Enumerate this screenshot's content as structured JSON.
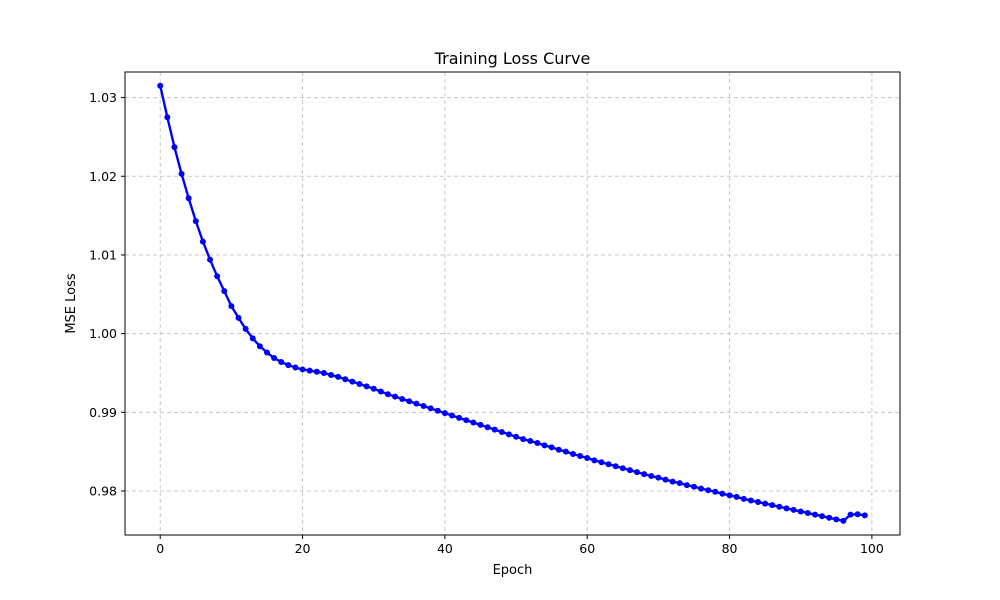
{
  "chart_data": {
    "type": "line",
    "title": "Training Loss Curve",
    "xlabel": "Epoch",
    "ylabel": "MSE Loss",
    "xlim": [
      -4.95,
      103.95
    ],
    "ylim": [
      0.97441,
      1.03325
    ],
    "xticks": [
      0,
      20,
      40,
      60,
      80,
      100
    ],
    "yticks": [
      0.98,
      0.99,
      1.0,
      1.01,
      1.02,
      1.03
    ],
    "xtick_labels": [
      "0",
      "20",
      "40",
      "60",
      "80",
      "100"
    ],
    "ytick_labels": [
      "0.98",
      "0.99",
      "1.00",
      "1.01",
      "1.02",
      "1.03"
    ],
    "grid": true,
    "legend": false,
    "series": [
      {
        "color": "#0000ff",
        "marker": "circle",
        "x": [
          0,
          1,
          2,
          3,
          4,
          5,
          6,
          7,
          8,
          9,
          10,
          11,
          12,
          13,
          14,
          15,
          16,
          17,
          18,
          19,
          20,
          21,
          22,
          23,
          24,
          25,
          26,
          27,
          28,
          29,
          30,
          31,
          32,
          33,
          34,
          35,
          36,
          37,
          38,
          39,
          40,
          41,
          42,
          43,
          44,
          45,
          46,
          47,
          48,
          49,
          50,
          51,
          52,
          53,
          54,
          55,
          56,
          57,
          58,
          59,
          60,
          61,
          62,
          63,
          64,
          65,
          66,
          67,
          68,
          69,
          70,
          71,
          72,
          73,
          74,
          75,
          76,
          77,
          78,
          79,
          80,
          81,
          82,
          83,
          84,
          85,
          86,
          87,
          88,
          89,
          90,
          91,
          92,
          93,
          94,
          95,
          96,
          97,
          98,
          99
        ],
        "y": [
          1.0315,
          1.0275,
          1.0237,
          1.0203,
          1.0172,
          1.0143,
          1.0117,
          1.0094,
          1.0073,
          1.0054,
          1.0035,
          1.002,
          1.0006,
          0.9994,
          0.9984,
          0.9976,
          0.9969,
          0.9964,
          0.996,
          0.9957,
          0.99545,
          0.9953,
          0.99515,
          0.995,
          0.99475,
          0.9945,
          0.9942,
          0.9939,
          0.9936,
          0.9933,
          0.993,
          0.99265,
          0.9923,
          0.992,
          0.9917,
          0.9914,
          0.9911,
          0.9908,
          0.9905,
          0.9902,
          0.9899,
          0.9896,
          0.9893,
          0.989,
          0.9887,
          0.9884,
          0.9881,
          0.9878,
          0.9875,
          0.9872,
          0.9869,
          0.9866,
          0.98635,
          0.9861,
          0.9858,
          0.98555,
          0.98525,
          0.985,
          0.9847,
          0.98445,
          0.9842,
          0.9839,
          0.98365,
          0.9834,
          0.98315,
          0.9829,
          0.98265,
          0.9824,
          0.98215,
          0.9819,
          0.9817,
          0.98145,
          0.9812,
          0.981,
          0.98075,
          0.98055,
          0.9803,
          0.9801,
          0.9799,
          0.97965,
          0.97945,
          0.97925,
          0.979,
          0.9788,
          0.9786,
          0.9784,
          0.9782,
          0.978,
          0.9778,
          0.9776,
          0.9774,
          0.9772,
          0.977,
          0.9768,
          0.9766,
          0.9764,
          0.9762,
          0.977,
          0.97705,
          0.9769
        ]
      }
    ]
  }
}
